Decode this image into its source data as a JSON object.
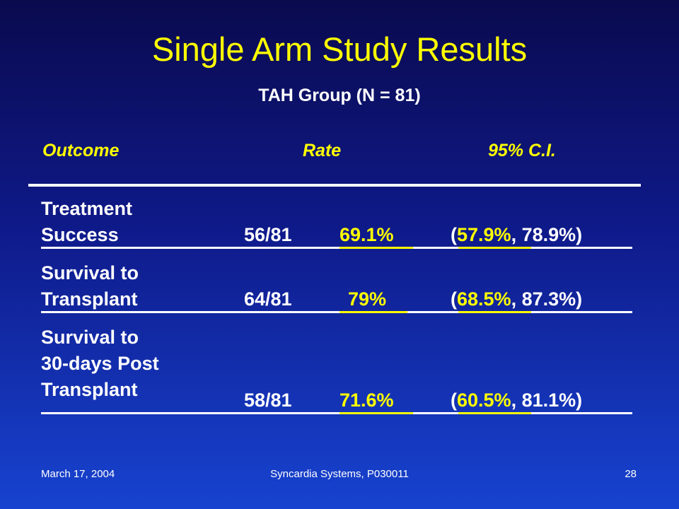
{
  "slide": {
    "title": "Single Arm Study Results",
    "subtitle": "TAH Group (N = 81)"
  },
  "table": {
    "headers": [
      "Outcome",
      "Rate",
      "95% C.I."
    ],
    "rows": [
      {
        "label_lines": [
          "Treatment",
          "Success"
        ],
        "count": "56/81",
        "rate": "69.1%",
        "ci_open": "(",
        "ci_low": "57.9%",
        "ci_rest": ", 78.9%)"
      },
      {
        "label_lines": [
          "Survival to",
          "Transplant"
        ],
        "count": "64/81",
        "rate": "79%",
        "ci_open": "(",
        "ci_low": "68.5%",
        "ci_rest": ", 87.3%)"
      },
      {
        "label_lines": [
          "Survival to",
          "30-days Post",
          "Transplant"
        ],
        "count": "58/81",
        "rate": "71.6%",
        "ci_open": "(",
        "ci_low": "60.5%",
        "ci_rest": ", 81.1%)"
      }
    ]
  },
  "footer": {
    "date": "March 17, 2004",
    "center": "Syncardia Systems, P030011",
    "page": "28"
  },
  "colors": {
    "title": "#ffff00",
    "text": "#ffffff",
    "background_top": "#0a0a4e",
    "background_bottom": "#1743d0"
  }
}
